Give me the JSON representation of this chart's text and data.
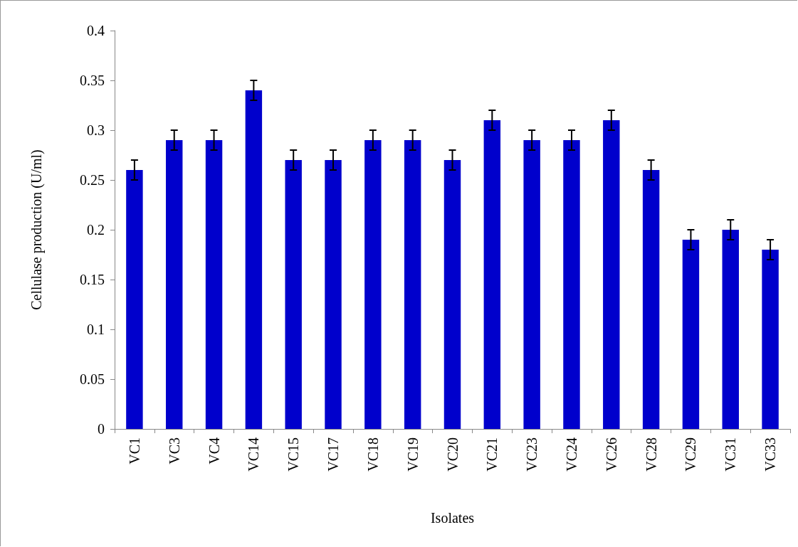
{
  "chart_data": {
    "type": "bar",
    "xlabel": "Isolates",
    "ylabel": "Cellulase production (U/ml)",
    "categories": [
      "VC1",
      "VC3",
      "VC4",
      "VC14",
      "VC15",
      "VC17",
      "VC18",
      "VC19",
      "VC20",
      "VC21",
      "VC23",
      "VC24",
      "VC26",
      "VC28",
      "VC29",
      "VC31",
      "VC33"
    ],
    "values": [
      0.26,
      0.29,
      0.29,
      0.34,
      0.27,
      0.27,
      0.29,
      0.29,
      0.27,
      0.31,
      0.29,
      0.29,
      0.31,
      0.26,
      0.19,
      0.2,
      0.18
    ],
    "errors": [
      0.01,
      0.01,
      0.01,
      0.01,
      0.01,
      0.01,
      0.01,
      0.01,
      0.01,
      0.01,
      0.01,
      0.01,
      0.01,
      0.01,
      0.01,
      0.01,
      0.01
    ],
    "color": "#0000cc",
    "ylim": [
      0,
      0.4
    ],
    "yticks": [
      0,
      0.05,
      0.1,
      0.15,
      0.2,
      0.25,
      0.3,
      0.35,
      0.4
    ],
    "grid": false
  }
}
